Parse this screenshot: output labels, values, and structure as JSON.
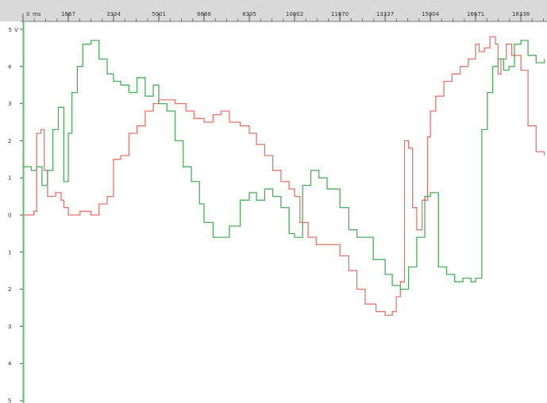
{
  "chart_data": {
    "type": "line",
    "x_unit_label": "ms",
    "y_unit_label": "V",
    "x_tick_labels": [
      "0",
      "1667",
      "3334",
      "5001",
      "6668",
      "8335",
      "10002",
      "11670",
      "13337",
      "15004",
      "16671",
      "18338"
    ],
    "x_tick_values": [
      0,
      1667,
      3334,
      5001,
      6668,
      8335,
      10002,
      11670,
      13337,
      15004,
      16671,
      18338
    ],
    "xlim": [
      0,
      19300
    ],
    "y_tick_labels": [
      "5",
      "4",
      "3",
      "2",
      "1",
      "0",
      "1",
      "2",
      "3",
      "4",
      "5"
    ],
    "y_tick_values": [
      5,
      4,
      3,
      2,
      1,
      0,
      -1,
      -2,
      -3,
      -4,
      -5
    ],
    "ylim": [
      -5,
      5
    ],
    "grid": false,
    "colors": {
      "red": "#e8756a",
      "green": "#4cae5c",
      "axis": "#5cbf6a",
      "header": "#d9d9d9"
    },
    "series": [
      {
        "color": "#e8756a",
        "x": [
          0,
          400,
          500,
          660,
          780,
          900,
          1000,
          1200,
          1400,
          1500,
          1667,
          1800,
          2100,
          2500,
          2800,
          3100,
          3334,
          3600,
          3900,
          4200,
          4500,
          4800,
          5001,
          5200,
          5600,
          6000,
          6300,
          6668,
          7000,
          7300,
          7600,
          8000,
          8335,
          8600,
          8900,
          9200,
          9500,
          9800,
          10002,
          10200,
          10500,
          10800,
          11200,
          11670,
          12000,
          12300,
          12600,
          13000,
          13337,
          13600,
          13750,
          13900,
          14050,
          14200,
          14350,
          14500,
          14700,
          14900,
          15004,
          15200,
          15500,
          15800,
          16100,
          16400,
          16671,
          16800,
          17000,
          17200,
          17400,
          17500,
          17600,
          17800,
          18000,
          18338,
          18600,
          18900,
          19200
        ],
        "values": [
          0.0,
          0.1,
          2.2,
          2.3,
          1.2,
          0.5,
          0.5,
          0.6,
          0.4,
          0.2,
          0.0,
          0.0,
          0.1,
          0.0,
          0.3,
          0.5,
          1.5,
          1.6,
          2.2,
          2.4,
          2.8,
          3.0,
          3.1,
          3.1,
          3.0,
          2.8,
          2.6,
          2.5,
          2.7,
          2.8,
          2.5,
          2.4,
          2.2,
          1.9,
          1.6,
          1.2,
          0.9,
          0.7,
          0.5,
          -0.2,
          -0.6,
          -0.8,
          -0.8,
          -1.1,
          -1.5,
          -2.0,
          -2.4,
          -2.6,
          -2.7,
          -2.6,
          -2.2,
          -1.8,
          2.0,
          1.8,
          0.2,
          -0.4,
          0.4,
          2.1,
          2.8,
          3.2,
          3.6,
          3.8,
          4.0,
          4.2,
          4.6,
          4.4,
          4.5,
          4.8,
          4.6,
          3.8,
          4.2,
          4.6,
          4.3,
          3.9,
          2.4,
          1.7,
          1.6
        ]
      },
      {
        "color": "#4cae5c",
        "x": [
          0,
          300,
          500,
          700,
          900,
          1100,
          1300,
          1500,
          1667,
          1800,
          2000,
          2200,
          2500,
          2800,
          3100,
          3334,
          3600,
          3900,
          4200,
          4500,
          4800,
          5001,
          5300,
          5600,
          5900,
          6200,
          6500,
          6668,
          7000,
          7300,
          7600,
          8000,
          8335,
          8600,
          8900,
          9200,
          9500,
          9800,
          10002,
          10300,
          10600,
          10900,
          11200,
          11670,
          12000,
          12300,
          12600,
          12900,
          13337,
          13600,
          13900,
          14200,
          14500,
          14800,
          15004,
          15300,
          15600,
          15900,
          16200,
          16500,
          16671,
          16900,
          17100,
          17300,
          17500,
          17700,
          17900,
          18100,
          18338,
          18600,
          18900,
          19200
        ],
        "values": [
          1.3,
          1.2,
          1.3,
          0.8,
          1.2,
          2.3,
          2.9,
          0.9,
          2.2,
          3.3,
          4.0,
          4.6,
          4.7,
          4.2,
          3.8,
          3.6,
          3.5,
          3.3,
          3.7,
          3.2,
          3.5,
          3.0,
          2.8,
          2.0,
          1.3,
          0.9,
          0.3,
          -0.2,
          -0.6,
          -0.6,
          -0.3,
          0.4,
          0.6,
          0.4,
          0.7,
          0.5,
          0.2,
          -0.5,
          -0.6,
          0.8,
          1.2,
          1.0,
          0.7,
          0.2,
          -0.4,
          -0.6,
          -0.6,
          -1.2,
          -1.6,
          -1.9,
          -2.0,
          -1.4,
          -0.6,
          0.5,
          0.6,
          -1.4,
          -1.6,
          -1.8,
          -1.7,
          -1.8,
          -1.7,
          2.3,
          3.3,
          4.0,
          4.2,
          3.9,
          4.0,
          4.6,
          4.7,
          4.3,
          4.1,
          4.2
        ]
      }
    ]
  }
}
